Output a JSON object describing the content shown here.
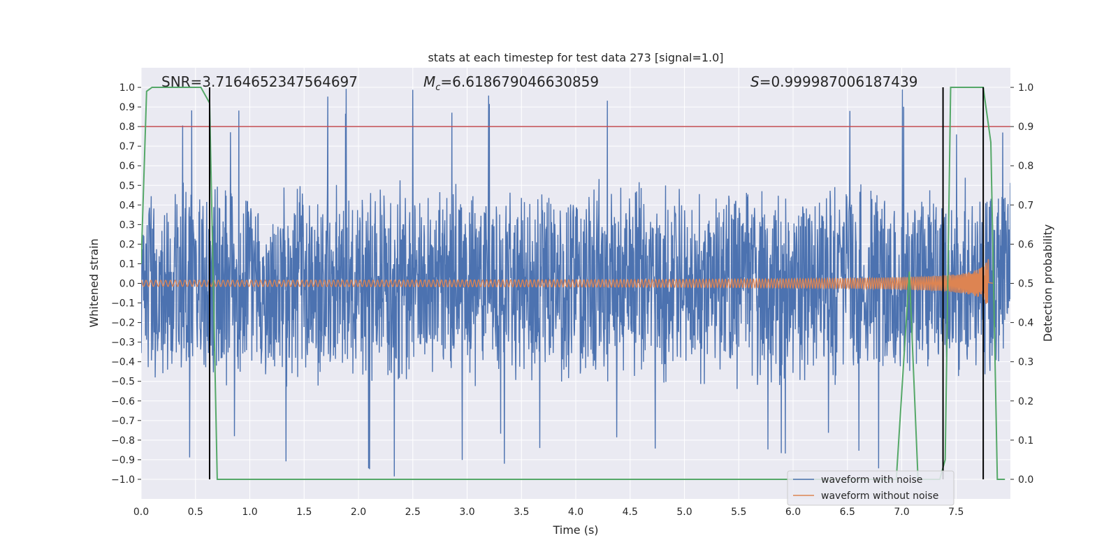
{
  "chart_data": {
    "type": "line",
    "title": "stats at each timestep for test data 273 [signal=1.0]",
    "xlabel": "Time (s)",
    "ylabel": "Whitened strain",
    "y2label": "Detection probability",
    "xlim": [
      0.0,
      8.0
    ],
    "ylim": [
      -1.1,
      1.1
    ],
    "y2lim": [
      -0.05,
      1.05
    ],
    "x_ticks": [
      "0.0",
      "0.5",
      "1.0",
      "1.5",
      "2.0",
      "2.5",
      "3.0",
      "3.5",
      "4.0",
      "4.5",
      "5.0",
      "5.5",
      "6.0",
      "6.5",
      "7.0",
      "7.5"
    ],
    "y_ticks": [
      "1.0",
      "0.9",
      "0.8",
      "0.7",
      "0.6",
      "0.5",
      "0.4",
      "0.3",
      "0.2",
      "0.1",
      "0.0",
      "−0.1",
      "−0.2",
      "−0.3",
      "−0.4",
      "−0.5",
      "−0.6",
      "−0.7",
      "−0.8",
      "−0.9",
      "−1.0"
    ],
    "y2_ticks": [
      "1.0",
      "0.9",
      "0.8",
      "0.7",
      "0.6",
      "0.5",
      "0.4",
      "0.3",
      "0.2",
      "0.1",
      "0.0"
    ],
    "grid": true,
    "legend_placement": "lower-right",
    "annotations": {
      "snr": "SNR=3.7164652347564697",
      "mc_symbol": "M",
      "mc_sub": "c",
      "mc_value": "=6.618679046630859",
      "s_symbol": "S",
      "s_value": "=0.999987006187439"
    },
    "series": [
      {
        "name": "waveform with noise",
        "color": "#4c72b0",
        "kind": "noise",
        "envelope_approx": 0.55,
        "peak_max": 1.0,
        "peak_min": -1.0
      },
      {
        "name": "waveform without noise",
        "color": "#dd8452",
        "kind": "chirp",
        "start_amplitude": 0.01,
        "end_amplitude_max": 0.13,
        "end_amplitude_min": -0.13,
        "merger_time": 7.8
      }
    ],
    "threshold": {
      "y": 0.8,
      "color": "#c44e52"
    },
    "detection_probability": {
      "color": "#55a868",
      "x": [
        0.0,
        0.05,
        0.1,
        0.55,
        0.63,
        0.7,
        6.95,
        7.07,
        7.15,
        7.35,
        7.4,
        7.45,
        7.75,
        7.82,
        7.88,
        7.95
      ],
      "y": [
        0.55,
        0.99,
        1.0,
        1.0,
        0.96,
        0.0,
        0.0,
        0.53,
        0.0,
        0.0,
        0.05,
        1.0,
        1.0,
        0.86,
        0.0,
        0.0
      ]
    },
    "vertical_lines": {
      "color": "#000000",
      "x": [
        0.63,
        7.38,
        7.75
      ]
    }
  }
}
